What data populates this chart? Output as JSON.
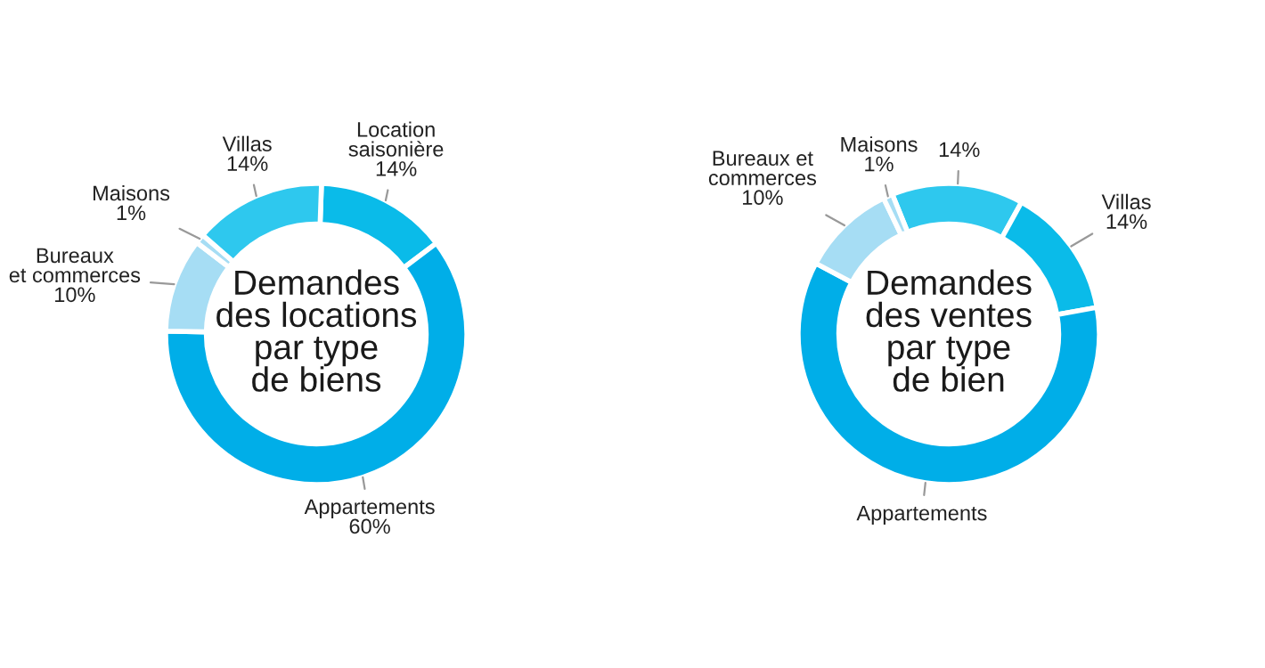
{
  "chart_data": [
    {
      "type": "donut",
      "title": "Demandes\ndes locations\npar type\nde biens",
      "categories": [
        "Location\nsaisonière",
        "Appartements",
        "Bureaux\net commerces",
        "Maisons",
        "Villas"
      ],
      "values": [
        14,
        60,
        10,
        1,
        14
      ],
      "colors": [
        "#0abbe9",
        "#00aee8",
        "#a6ddf4",
        "#a6ddf4",
        "#2ec8ee"
      ],
      "value_labels": [
        "14%",
        "60%",
        "10%",
        "1%",
        "14%"
      ]
    },
    {
      "type": "donut",
      "title": "Demandes\ndes ventes\npar type\nde bien",
      "categories": [
        null,
        "Villas",
        "Appartements",
        "Bureaux et\ncommerces",
        "Maisons"
      ],
      "values": [
        14,
        14,
        60,
        10,
        1
      ],
      "colors": [
        "#2ec8ee",
        "#0abbe9",
        "#00aee8",
        "#a6ddf4",
        "#a6ddf4"
      ],
      "value_labels": [
        "14%",
        "14%",
        null,
        "10%",
        "1%"
      ]
    }
  ]
}
